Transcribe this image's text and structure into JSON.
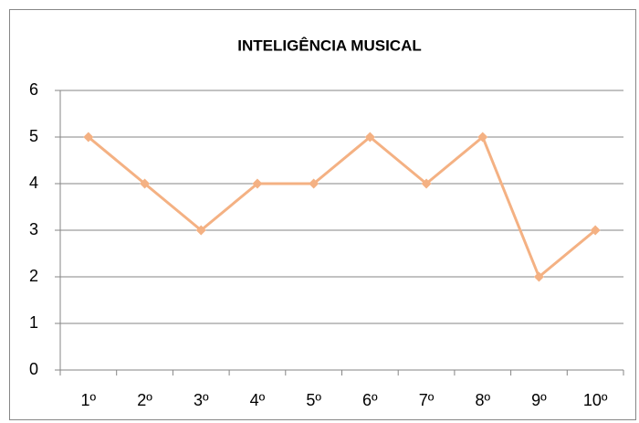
{
  "chart_data": {
    "type": "line",
    "title": "INTELIGÊNCIA MUSICAL",
    "categories": [
      "1º",
      "2º",
      "3º",
      "4º",
      "5º",
      "6º",
      "7º",
      "8º",
      "9º",
      "10º"
    ],
    "values": [
      5,
      4,
      3,
      4,
      4,
      5,
      4,
      5,
      2,
      3
    ],
    "color": "#f4b183",
    "ylim": [
      0,
      6
    ],
    "yticks": [
      0,
      1,
      2,
      3,
      4,
      5,
      6
    ],
    "grid": true
  }
}
